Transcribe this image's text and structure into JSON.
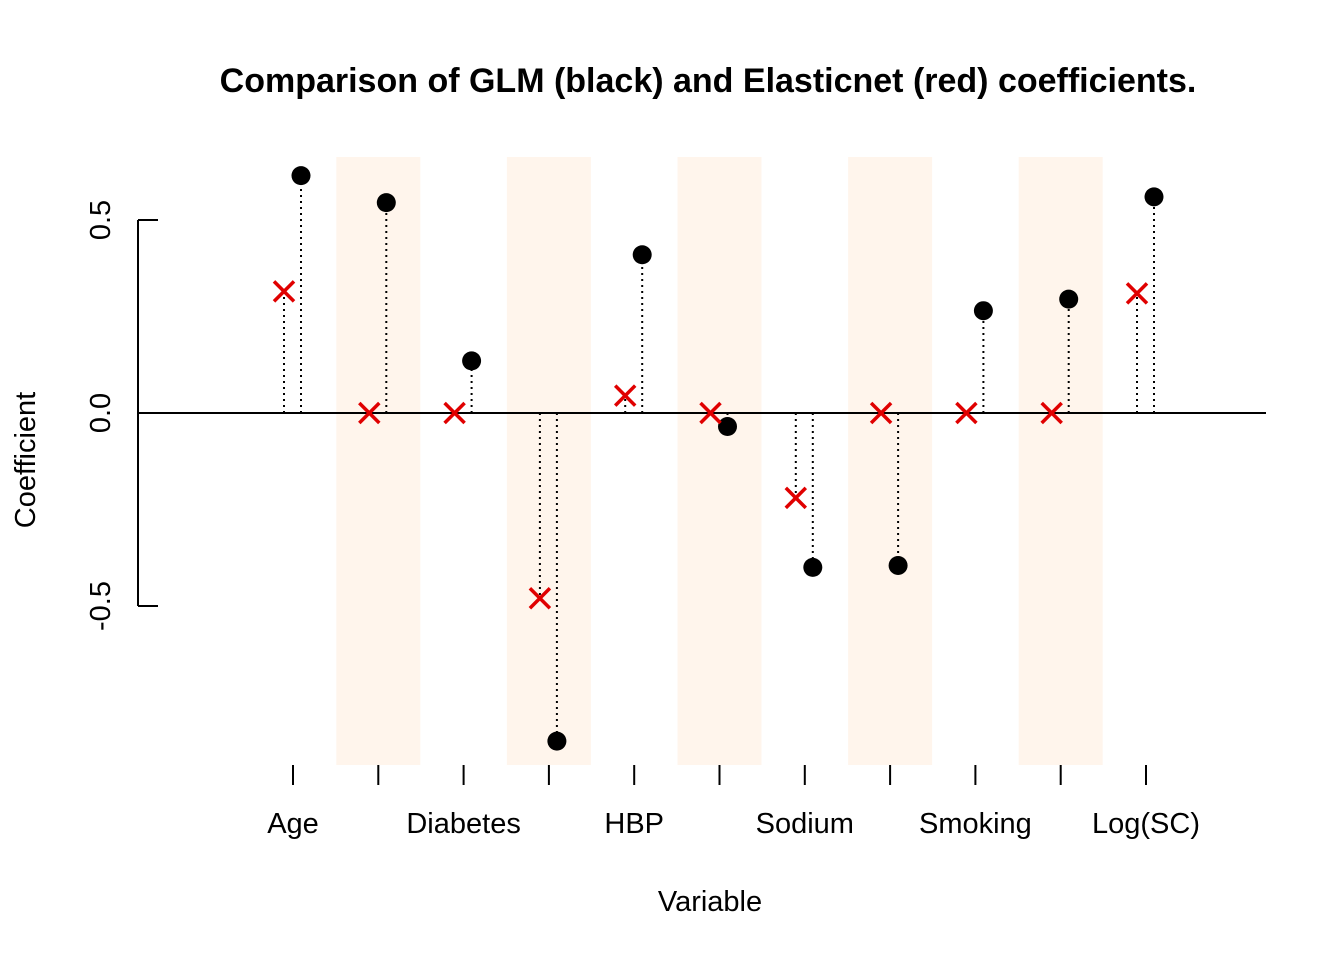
{
  "chart_data": {
    "type": "scatter",
    "title": "Comparison of GLM (black) and Elasticnet (red) coefficients.",
    "xlabel": "Variable",
    "ylabel": "Coefficient",
    "ylim": [
      -0.9,
      0.68
    ],
    "y_ticks": [
      "-0.5",
      "0.0",
      "0.5"
    ],
    "y_tick_values": [
      -0.5,
      0.0,
      0.5
    ],
    "x_ticks": [
      "Age",
      "",
      "Diabetes",
      "",
      "HBP",
      "",
      "Sodium",
      "",
      "Smoking",
      "",
      "Log(SC)"
    ],
    "shaded_bands": [
      2,
      4,
      6,
      8,
      10
    ],
    "colors": {
      "glm": "#000000",
      "elasticnet": "#e00000",
      "band": "#fff5ec"
    },
    "series": [
      {
        "values": [
          0.615,
          0.545,
          0.135,
          -0.85,
          0.41,
          -0.035,
          -0.4,
          -0.395,
          0.265,
          0.295,
          0.56
        ]
      },
      {
        "values": [
          0.315,
          0.0,
          0.0,
          -0.48,
          0.045,
          0.0,
          -0.22,
          0.0,
          0.0,
          0.0,
          0.31
        ]
      }
    ]
  }
}
